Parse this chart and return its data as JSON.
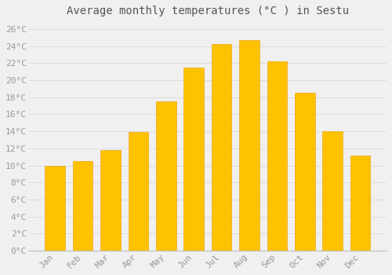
{
  "title": "Average monthly temperatures (°C ) in Sestu",
  "months": [
    "Jan",
    "Feb",
    "Mar",
    "Apr",
    "May",
    "Jun",
    "Jul",
    "Aug",
    "Sep",
    "Oct",
    "Nov",
    "Dec"
  ],
  "values": [
    10.0,
    10.5,
    11.8,
    13.9,
    17.5,
    21.5,
    24.3,
    24.7,
    22.2,
    18.5,
    14.0,
    11.2
  ],
  "bar_color_top": "#FFC200",
  "bar_color_bottom": "#FFB000",
  "bar_edge_color": "#E89A00",
  "background_color": "#F0F0F0",
  "grid_color": "#DDDDDD",
  "text_color": "#999999",
  "title_color": "#555555",
  "ylim": [
    0,
    27
  ],
  "yticks": [
    0,
    2,
    4,
    6,
    8,
    10,
    12,
    14,
    16,
    18,
    20,
    22,
    24,
    26
  ],
  "title_fontsize": 10,
  "tick_fontsize": 8,
  "bar_width": 0.72
}
